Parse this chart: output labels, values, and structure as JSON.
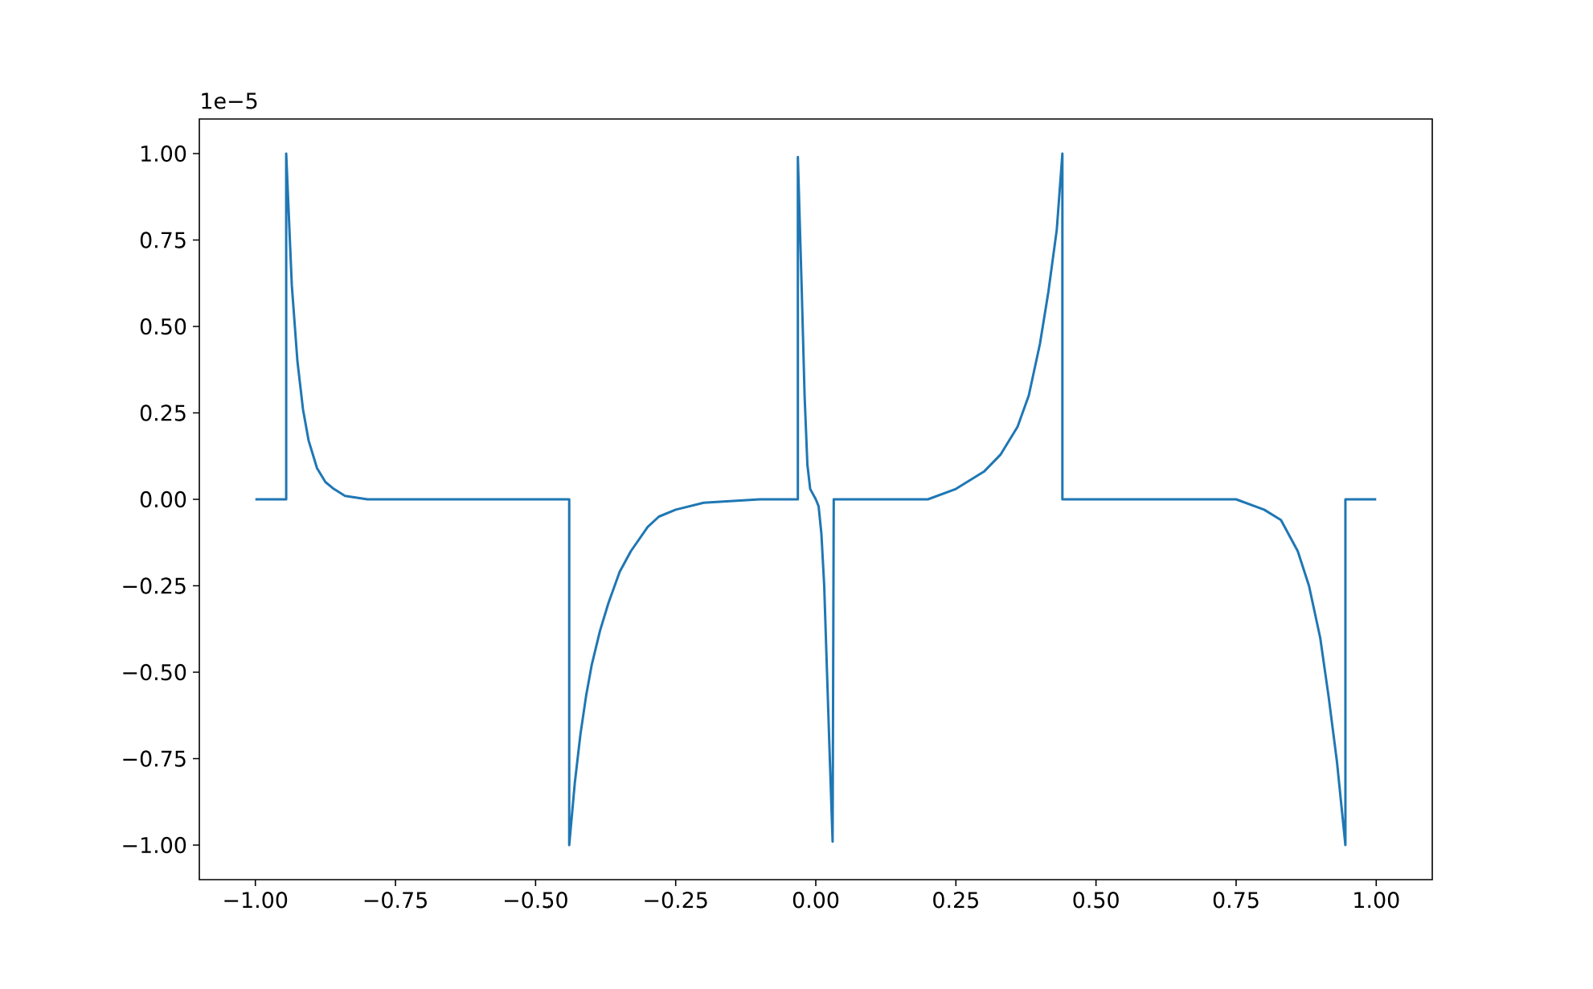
{
  "chart_data": {
    "type": "line",
    "x": [
      -1.0,
      -0.945,
      -0.945,
      -0.935,
      -0.925,
      -0.915,
      -0.905,
      -0.89,
      -0.875,
      -0.86,
      -0.84,
      -0.8,
      -0.7,
      -0.44,
      -0.44,
      -0.43,
      -0.42,
      -0.41,
      -0.4,
      -0.385,
      -0.37,
      -0.35,
      -0.33,
      -0.3,
      -0.28,
      -0.25,
      -0.2,
      -0.1,
      -0.032,
      -0.032,
      -0.025,
      -0.02,
      -0.015,
      -0.01,
      0.0,
      0.005,
      0.01,
      0.015,
      0.02,
      0.025,
      0.03,
      0.032,
      0.1,
      0.2,
      0.25,
      0.3,
      0.33,
      0.36,
      0.38,
      0.4,
      0.415,
      0.43,
      0.44,
      0.44,
      0.6,
      0.75,
      0.8,
      0.83,
      0.86,
      0.88,
      0.9,
      0.915,
      0.93,
      0.945,
      0.945,
      1.0
    ],
    "series": [
      {
        "color": "#1f77b4",
        "values": [
          0,
          0,
          1.0,
          0.62,
          0.4,
          0.26,
          0.17,
          0.09,
          0.05,
          0.03,
          0.01,
          0,
          0,
          0,
          -1.0,
          -0.82,
          -0.68,
          -0.57,
          -0.48,
          -0.38,
          -0.3,
          -0.21,
          -0.15,
          -0.08,
          -0.05,
          -0.03,
          -0.01,
          0,
          0,
          0.99,
          0.6,
          0.3,
          0.1,
          0.03,
          0,
          -0.02,
          -0.1,
          -0.25,
          -0.5,
          -0.75,
          -0.99,
          0,
          0,
          0,
          0.03,
          0.08,
          0.13,
          0.21,
          0.3,
          0.45,
          0.6,
          0.78,
          1.0,
          0,
          0,
          0,
          -0.03,
          -0.06,
          -0.15,
          -0.25,
          -0.4,
          -0.57,
          -0.76,
          -1.0,
          0,
          0
        ]
      }
    ],
    "xlim": [
      -1.1,
      1.1
    ],
    "ylim": [
      -1.1,
      1.1
    ],
    "xticks": [
      {
        "value": -1.0,
        "label": "−1.00"
      },
      {
        "value": -0.75,
        "label": "−0.75"
      },
      {
        "value": -0.5,
        "label": "−0.50"
      },
      {
        "value": -0.25,
        "label": "−0.25"
      },
      {
        "value": 0.0,
        "label": "0.00"
      },
      {
        "value": 0.25,
        "label": "0.25"
      },
      {
        "value": 0.5,
        "label": "0.50"
      },
      {
        "value": 0.75,
        "label": "0.75"
      },
      {
        "value": 1.0,
        "label": "1.00"
      }
    ],
    "yticks": [
      {
        "value": -1.0,
        "label": "−1.00"
      },
      {
        "value": -0.75,
        "label": "−0.75"
      },
      {
        "value": -0.5,
        "label": "−0.50"
      },
      {
        "value": -0.25,
        "label": "−0.25"
      },
      {
        "value": 0.0,
        "label": "0.00"
      },
      {
        "value": 0.25,
        "label": "0.25"
      },
      {
        "value": 0.5,
        "label": "0.50"
      },
      {
        "value": 0.75,
        "label": "0.75"
      },
      {
        "value": 1.0,
        "label": "1.00"
      }
    ],
    "annotations": [
      "1e−5"
    ]
  }
}
